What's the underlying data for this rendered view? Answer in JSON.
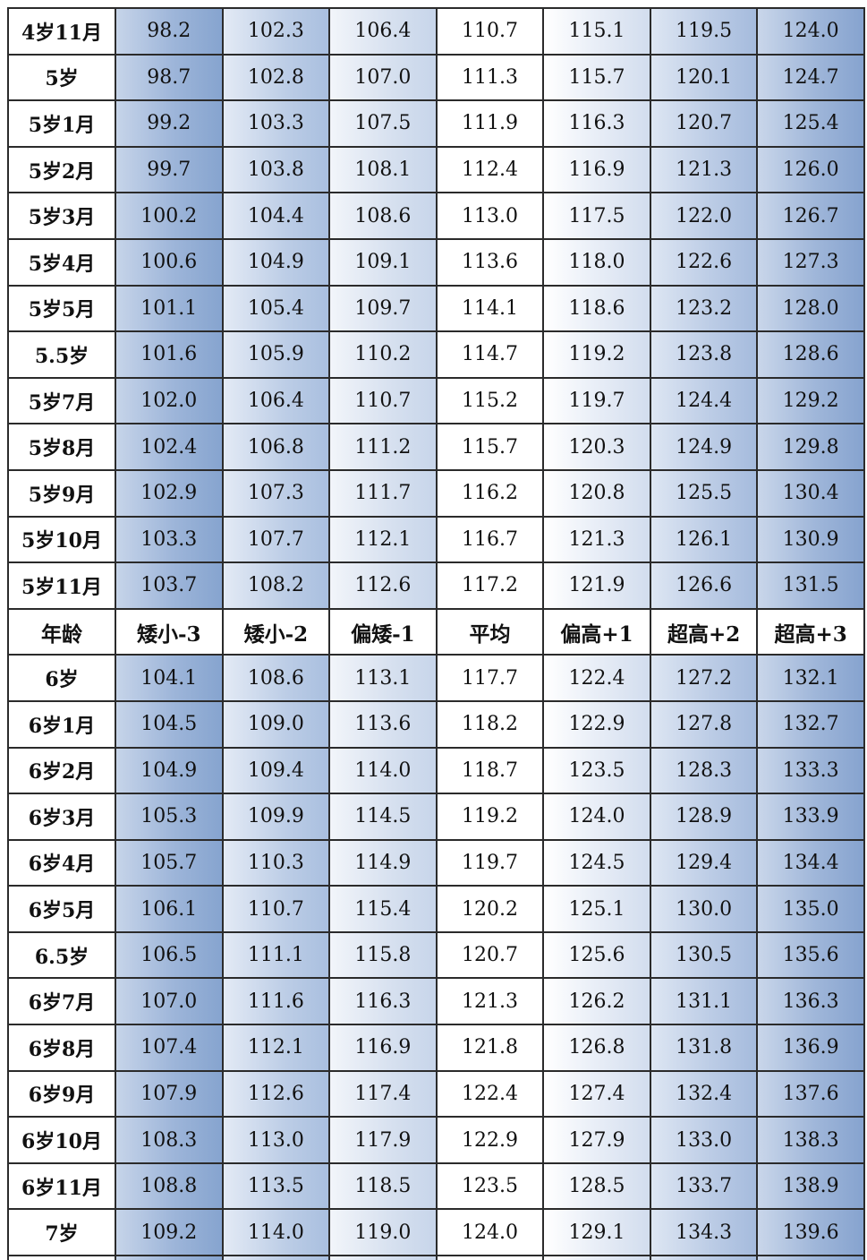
{
  "columns": [
    "年龄",
    "矮小-3",
    "矮小-2",
    "偏矮-1",
    "平均",
    "偏高+1",
    "超高+2",
    "超高+3"
  ],
  "rows_top": [
    {
      "age": "4岁11月",
      "values": [
        "98.2",
        "102.3",
        "106.4",
        "110.7",
        "115.1",
        "119.5",
        "124.0"
      ]
    },
    {
      "age": "5岁",
      "values": [
        "98.7",
        "102.8",
        "107.0",
        "111.3",
        "115.7",
        "120.1",
        "124.7"
      ]
    },
    {
      "age": "5岁1月",
      "values": [
        "99.2",
        "103.3",
        "107.5",
        "111.9",
        "116.3",
        "120.7",
        "125.4"
      ]
    },
    {
      "age": "5岁2月",
      "values": [
        "99.7",
        "103.8",
        "108.1",
        "112.4",
        "116.9",
        "121.3",
        "126.0"
      ]
    },
    {
      "age": "5岁3月",
      "values": [
        "100.2",
        "104.4",
        "108.6",
        "113.0",
        "117.5",
        "122.0",
        "126.7"
      ]
    },
    {
      "age": "5岁4月",
      "values": [
        "100.6",
        "104.9",
        "109.1",
        "113.6",
        "118.0",
        "122.6",
        "127.3"
      ]
    },
    {
      "age": "5岁5月",
      "values": [
        "101.1",
        "105.4",
        "109.7",
        "114.1",
        "118.6",
        "123.2",
        "128.0"
      ]
    },
    {
      "age": "5.5岁",
      "values": [
        "101.6",
        "105.9",
        "110.2",
        "114.7",
        "119.2",
        "123.8",
        "128.6"
      ]
    },
    {
      "age": "5岁7月",
      "values": [
        "102.0",
        "106.4",
        "110.7",
        "115.2",
        "119.7",
        "124.4",
        "129.2"
      ]
    },
    {
      "age": "5岁8月",
      "values": [
        "102.4",
        "106.8",
        "111.2",
        "115.7",
        "120.3",
        "124.9",
        "129.8"
      ]
    },
    {
      "age": "5岁9月",
      "values": [
        "102.9",
        "107.3",
        "111.7",
        "116.2",
        "120.8",
        "125.5",
        "130.4"
      ]
    },
    {
      "age": "5岁10月",
      "values": [
        "103.3",
        "107.7",
        "112.1",
        "116.7",
        "121.3",
        "126.1",
        "130.9"
      ]
    },
    {
      "age": "5岁11月",
      "values": [
        "103.7",
        "108.2",
        "112.6",
        "117.2",
        "121.9",
        "126.6",
        "131.5"
      ]
    }
  ],
  "rows_bottom": [
    {
      "age": "6岁",
      "values": [
        "104.1",
        "108.6",
        "113.1",
        "117.7",
        "122.4",
        "127.2",
        "132.1"
      ]
    },
    {
      "age": "6岁1月",
      "values": [
        "104.5",
        "109.0",
        "113.6",
        "118.2",
        "122.9",
        "127.8",
        "132.7"
      ]
    },
    {
      "age": "6岁2月",
      "values": [
        "104.9",
        "109.4",
        "114.0",
        "118.7",
        "123.5",
        "128.3",
        "133.3"
      ]
    },
    {
      "age": "6岁3月",
      "values": [
        "105.3",
        "109.9",
        "114.5",
        "119.2",
        "124.0",
        "128.9",
        "133.9"
      ]
    },
    {
      "age": "6岁4月",
      "values": [
        "105.7",
        "110.3",
        "114.9",
        "119.7",
        "124.5",
        "129.4",
        "134.4"
      ]
    },
    {
      "age": "6岁5月",
      "values": [
        "106.1",
        "110.7",
        "115.4",
        "120.2",
        "125.1",
        "130.0",
        "135.0"
      ]
    },
    {
      "age": "6.5岁",
      "values": [
        "106.5",
        "111.1",
        "115.8",
        "120.7",
        "125.6",
        "130.5",
        "135.6"
      ]
    },
    {
      "age": "6岁7月",
      "values": [
        "107.0",
        "111.6",
        "116.3",
        "121.3",
        "126.2",
        "131.1",
        "136.3"
      ]
    },
    {
      "age": "6岁8月",
      "values": [
        "107.4",
        "112.1",
        "116.9",
        "121.8",
        "126.8",
        "131.8",
        "136.9"
      ]
    },
    {
      "age": "6岁9月",
      "values": [
        "107.9",
        "112.6",
        "117.4",
        "122.4",
        "127.4",
        "132.4",
        "137.6"
      ]
    },
    {
      "age": "6岁10月",
      "values": [
        "108.3",
        "113.0",
        "117.9",
        "122.9",
        "127.9",
        "133.0",
        "138.3"
      ]
    },
    {
      "age": "6岁11月",
      "values": [
        "108.8",
        "113.5",
        "118.5",
        "123.5",
        "128.5",
        "133.7",
        "138.9"
      ]
    },
    {
      "age": "7岁",
      "values": [
        "109.2",
        "114.0",
        "119.0",
        "124.0",
        "129.1",
        "134.3",
        "139.6"
      ]
    }
  ],
  "colors": {
    "cell_border": "#2b2b2b",
    "text": "#111111",
    "deep_blue": "#86a4cf",
    "light_blue": "#d2ddee",
    "white": "#ffffff"
  }
}
